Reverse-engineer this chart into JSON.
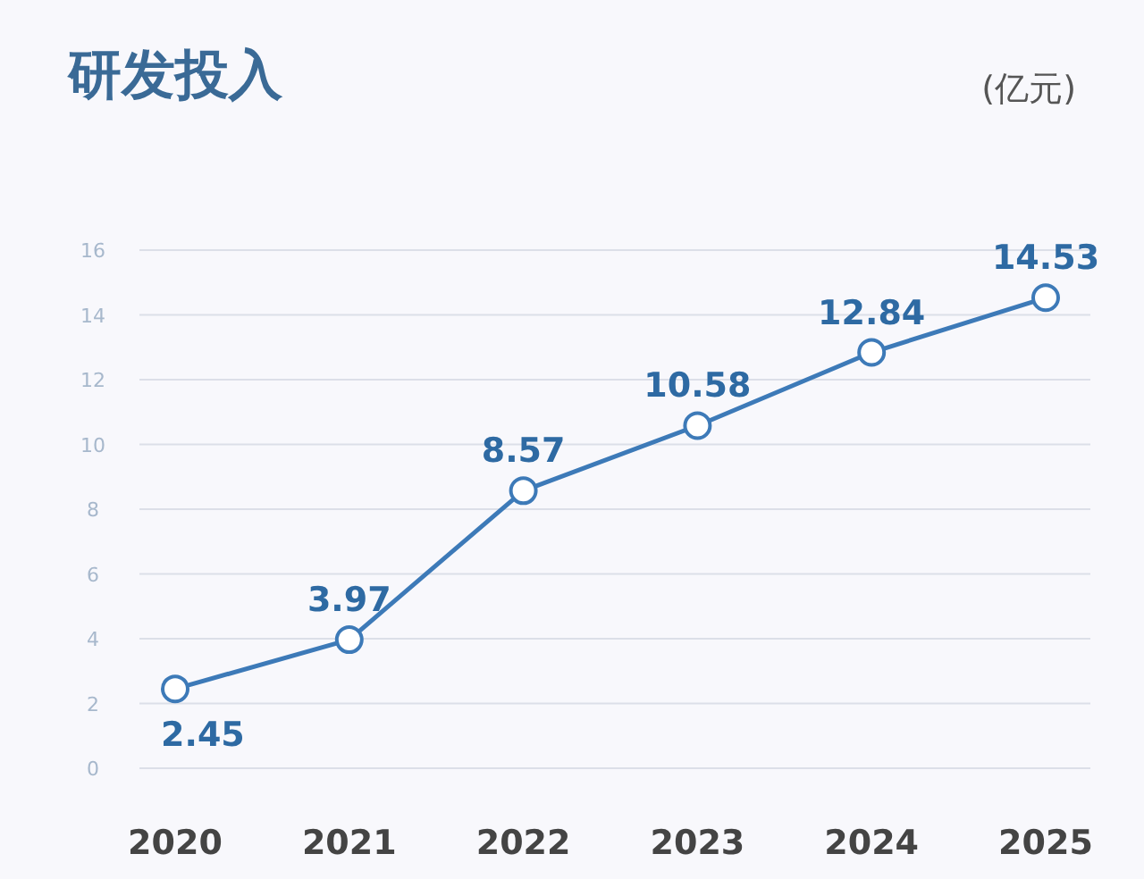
{
  "chart_data": {
    "type": "line",
    "title": "研发投入",
    "ylabel": "(亿元)",
    "categories": [
      "2020",
      "2021",
      "2022",
      "2023",
      "2024",
      "2025"
    ],
    "series": [
      {
        "color": "#3d7ab8",
        "values": [
          2.45,
          3.97,
          8.57,
          10.58,
          12.84,
          14.53
        ]
      }
    ],
    "ylim": [
      0,
      16
    ],
    "yticks": [
      0,
      2,
      4,
      6,
      8,
      10,
      12,
      14,
      16
    ],
    "grid": "y",
    "marker": "circle",
    "line_style": "solid",
    "data_labels": true
  }
}
